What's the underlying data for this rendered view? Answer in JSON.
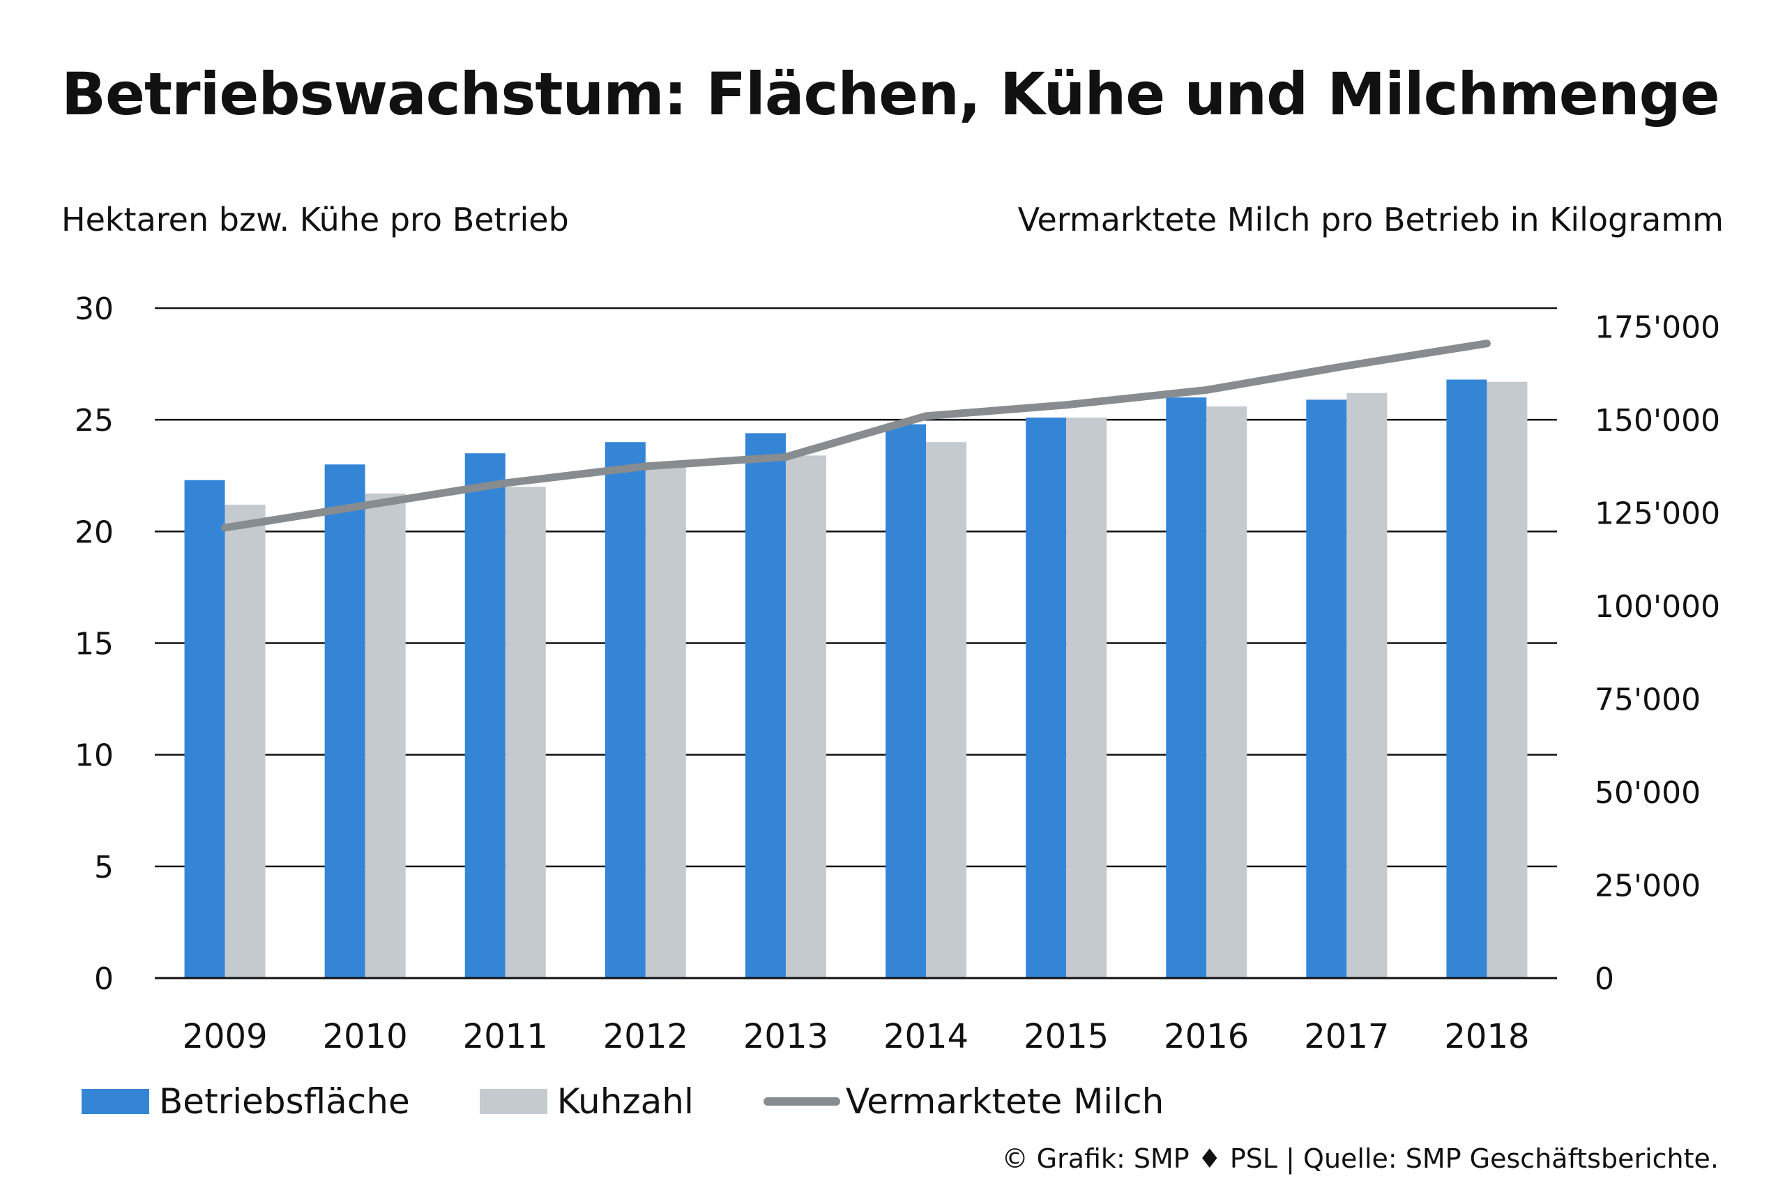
{
  "chart_data": {
    "type": "bar",
    "title": "Betriebswachstum: Flächen, Kühe und Milchmenge",
    "ylabel": "Hektaren bzw. Kühe pro Betrieb",
    "ylabel_right": "Vermarktete Milch pro Betrieb in Kilogramm",
    "categories": [
      "2009",
      "2010",
      "2011",
      "2012",
      "2013",
      "2014",
      "2015",
      "2016",
      "2017",
      "2018"
    ],
    "ylim": [
      0,
      30
    ],
    "yticks": [
      "0",
      "5",
      "10",
      "15",
      "20",
      "25",
      "30"
    ],
    "ylim_right": [
      0,
      180000
    ],
    "yticks_right": [
      "0",
      "25'000",
      "50'000",
      "75'000",
      "100'000",
      "125'000",
      "150'000",
      "175'000"
    ],
    "series": [
      {
        "name": "Betriebsfläche",
        "type": "bar",
        "axis": "left",
        "color": "#3585d6",
        "values": [
          22.3,
          23.0,
          23.5,
          24.0,
          24.4,
          24.8,
          25.1,
          26.0,
          25.9,
          26.8
        ]
      },
      {
        "name": "Kuhzahl",
        "type": "bar",
        "axis": "left",
        "color": "#c4cace",
        "values": [
          21.2,
          21.7,
          22.0,
          23.1,
          23.4,
          24.0,
          25.1,
          25.6,
          26.2,
          26.7
        ]
      },
      {
        "name": "Vermarktete Milch",
        "type": "line",
        "axis": "right",
        "color": "#878c90",
        "values": [
          121000,
          127000,
          133000,
          137500,
          140000,
          151000,
          154000,
          158000,
          164500,
          170500
        ]
      }
    ],
    "grid": true,
    "legend": "bottom-left"
  },
  "source": "© Grafik: SMP ♦ PSL | Quelle: SMP Geschäftsberichte."
}
